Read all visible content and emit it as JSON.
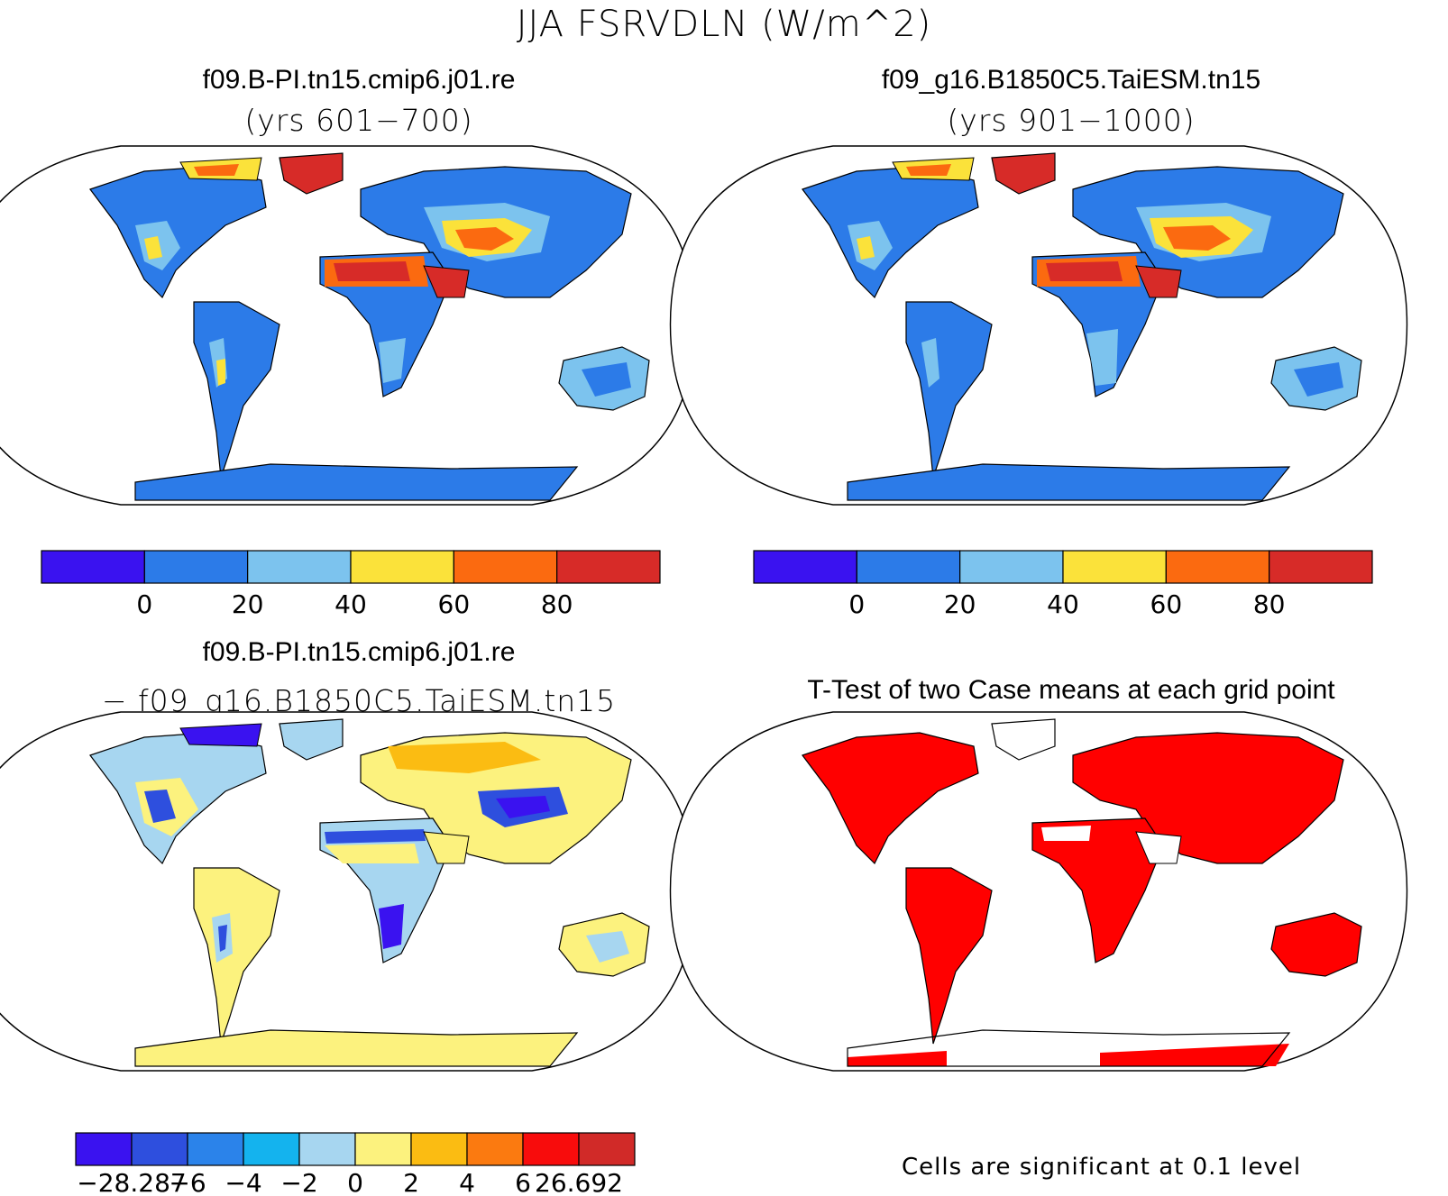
{
  "figure": {
    "title": "JJA FSRVDLN (W/m^2)"
  },
  "panels": [
    {
      "title": "f09.B-PI.tn15.cmip6.j01.re",
      "subtitle": "(yrs 601−700)",
      "colorbar": {
        "colors": [
          "#3a12f0",
          "#2c7be8",
          "#7cc3ee",
          "#fbe23a",
          "#fb6a10",
          "#d72b28"
        ],
        "labels": [
          "0",
          "20",
          "40",
          "60",
          "80"
        ]
      }
    },
    {
      "title": "f09_g16.B1850C5.TaiESM.tn15",
      "subtitle": "(yrs 901−1000)",
      "colorbar": {
        "colors": [
          "#3a12f0",
          "#2c7be8",
          "#7cc3ee",
          "#fbe23a",
          "#fb6a10",
          "#d72b28"
        ],
        "labels": [
          "0",
          "20",
          "40",
          "60",
          "80"
        ]
      }
    },
    {
      "title": "f09.B-PI.tn15.cmip6.j01.re",
      "subtitle": "− f09_g16.B1850C5.TaiESM.tn15",
      "colorbar": {
        "colors": [
          "#3a12f0",
          "#2e4fde",
          "#2b83ea",
          "#14b3ee",
          "#a7d6f0",
          "#fcf27e",
          "#fbbc12",
          "#fb7a10",
          "#f80c0c",
          "#d12a28"
        ],
        "labels": [
          "−28.287",
          "−6",
          "−4",
          "−2",
          "0",
          "2",
          "4",
          "6",
          "26.692"
        ]
      }
    },
    {
      "title": "T-Test of two Case means at each grid point",
      "note": "Cells are significant at 0.1 level"
    }
  ],
  "legend_colors": {
    "ocean": "#ffffff",
    "significant": "#ff0000",
    "coast": "#000000"
  }
}
